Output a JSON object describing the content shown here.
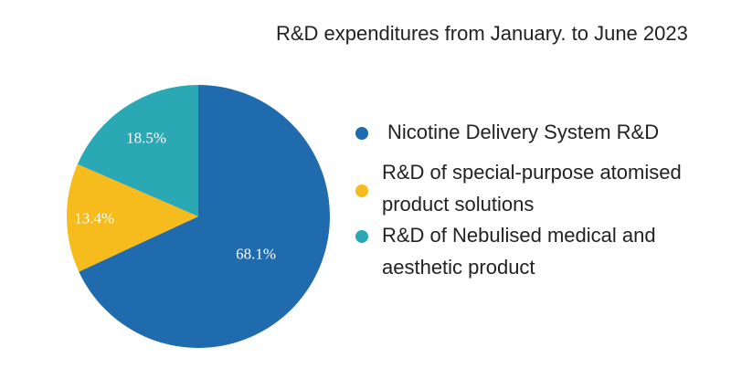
{
  "chart_data": {
    "type": "pie",
    "title": "R&D expenditures from January. to June 2023",
    "slices": [
      {
        "label_lines": [
          "Nicotine Delivery System R&D"
        ],
        "value": 68.1,
        "display": "68.1%",
        "color": "#1f6bad"
      },
      {
        "label_lines": [
          "R&D of special-purpose atomised",
          "product solutions"
        ],
        "value": 13.4,
        "display": "13.4%",
        "color": "#f6bb1c"
      },
      {
        "label_lines": [
          "R&D of Nebulised medical and",
          "aesthetic product"
        ],
        "value": 18.5,
        "display": "18.5%",
        "color": "#2aa9b5"
      }
    ],
    "legend_position": "right"
  }
}
